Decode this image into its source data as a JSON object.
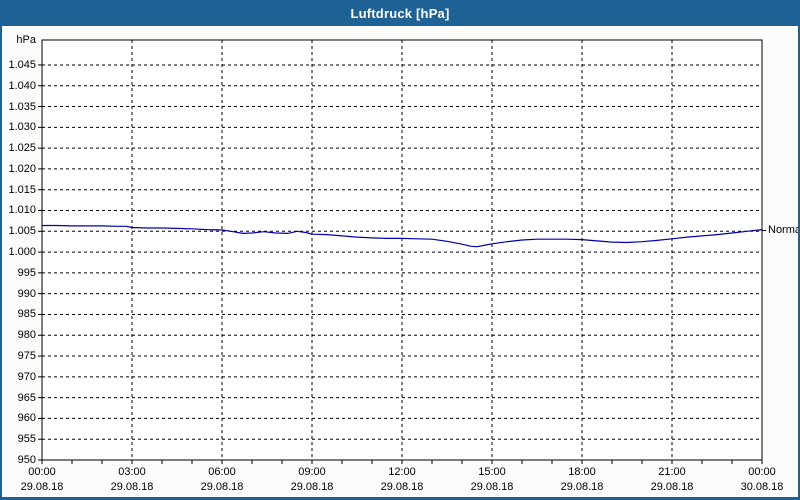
{
  "window": {
    "title": "Luftdruck [hPa]",
    "titlebar_color": "#1e6195",
    "border_color": "#1e6195",
    "background_color": "#fcfdfa"
  },
  "chart_data": {
    "type": "line",
    "title": "Luftdruck [hPa]",
    "y_unit": "hPa",
    "ylim": [
      950,
      1051
    ],
    "xlim_hours": [
      0,
      24
    ],
    "grid": "dashed-black",
    "line_color": "#0000b0",
    "plot_background": "#ffffff",
    "y_ticks": [
      {
        "value": 1045,
        "label": "1.045"
      },
      {
        "value": 1040,
        "label": "1.040"
      },
      {
        "value": 1035,
        "label": "1.035"
      },
      {
        "value": 1030,
        "label": "1.030"
      },
      {
        "value": 1025,
        "label": "1.025"
      },
      {
        "value": 1020,
        "label": "1.020"
      },
      {
        "value": 1015,
        "label": "1.015"
      },
      {
        "value": 1010,
        "label": "1.010"
      },
      {
        "value": 1005,
        "label": "1.005"
      },
      {
        "value": 1000,
        "label": "1.000"
      },
      {
        "value": 995,
        "label": "995"
      },
      {
        "value": 990,
        "label": "990"
      },
      {
        "value": 985,
        "label": "985"
      },
      {
        "value": 980,
        "label": "980"
      },
      {
        "value": 975,
        "label": "975"
      },
      {
        "value": 970,
        "label": "970"
      },
      {
        "value": 965,
        "label": "965"
      },
      {
        "value": 960,
        "label": "960"
      },
      {
        "value": 955,
        "label": "955"
      },
      {
        "value": 950,
        "label": "950"
      }
    ],
    "x_ticks": [
      {
        "hour": 0,
        "time": "00:00",
        "date": "29.08.18"
      },
      {
        "hour": 3,
        "time": "03:00",
        "date": "29.08.18"
      },
      {
        "hour": 6,
        "time": "06:00",
        "date": "29.08.18"
      },
      {
        "hour": 9,
        "time": "09:00",
        "date": "29.08.18"
      },
      {
        "hour": 12,
        "time": "12:00",
        "date": "29.08.18"
      },
      {
        "hour": 15,
        "time": "15:00",
        "date": "29.08.18"
      },
      {
        "hour": 18,
        "time": "18:00",
        "date": "29.08.18"
      },
      {
        "hour": 21,
        "time": "21:00",
        "date": "29.08.18"
      },
      {
        "hour": 24,
        "time": "00:00",
        "date": "30.08.18"
      }
    ],
    "x_minor_tick_every_hours": 1,
    "series": [
      {
        "name": "Luftdruck",
        "x_hours": [
          0,
          0.5,
          1,
          1.5,
          2,
          2.5,
          2.8,
          3,
          3.5,
          4,
          4.5,
          5,
          5.5,
          6,
          6.3,
          6.7,
          7,
          7.4,
          7.8,
          8.2,
          8.5,
          8.8,
          9,
          9.5,
          10,
          10.5,
          11,
          11.5,
          12,
          12.5,
          13,
          13.5,
          14,
          14.3,
          14.5,
          14.8,
          15,
          15.5,
          16,
          16.5,
          17,
          17.5,
          18,
          18.5,
          19,
          19.5,
          20,
          20.5,
          21,
          21.5,
          22,
          22.5,
          23,
          23.5,
          24
        ],
        "values": [
          1006.4,
          1006.4,
          1006.3,
          1006.3,
          1006.3,
          1006.2,
          1006.2,
          1005.9,
          1005.8,
          1005.8,
          1005.7,
          1005.6,
          1005.4,
          1005.3,
          1005.0,
          1004.5,
          1004.6,
          1004.9,
          1004.6,
          1004.5,
          1005.0,
          1004.7,
          1004.3,
          1004.2,
          1003.9,
          1003.6,
          1003.4,
          1003.3,
          1003.3,
          1003.2,
          1003.1,
          1002.6,
          1001.9,
          1001.4,
          1001.3,
          1001.7,
          1002.0,
          1002.5,
          1002.9,
          1003.1,
          1003.1,
          1003.1,
          1003.0,
          1002.7,
          1002.4,
          1002.3,
          1002.5,
          1002.8,
          1003.2,
          1003.6,
          1003.9,
          1004.2,
          1004.6,
          1005.0,
          1005.4
        ]
      }
    ],
    "normal_marker": {
      "label": "Normal",
      "value": 1005.2
    }
  }
}
